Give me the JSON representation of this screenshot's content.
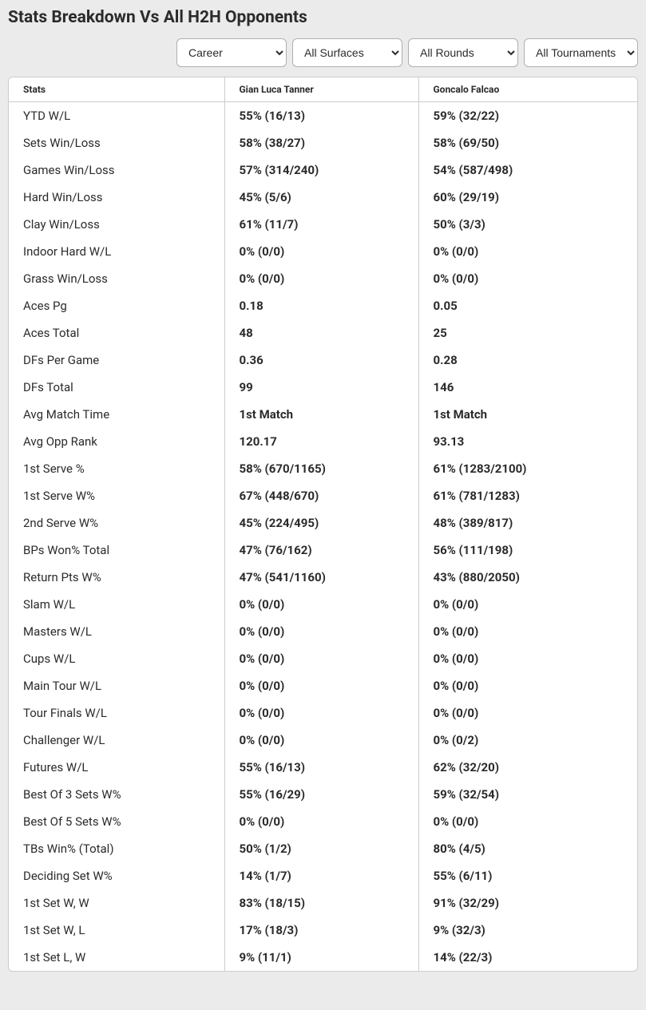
{
  "title": "Stats Breakdown Vs All H2H Opponents",
  "filters": {
    "period": {
      "selected": "Career",
      "options": [
        "Career"
      ]
    },
    "surface": {
      "selected": "All Surfaces",
      "options": [
        "All Surfaces"
      ]
    },
    "round": {
      "selected": "All Rounds",
      "options": [
        "All Rounds"
      ]
    },
    "tournament": {
      "selected": "All Tournaments",
      "options": [
        "All Tournaments"
      ]
    }
  },
  "table": {
    "headers": {
      "stats": "Stats",
      "player1": "Gian Luca Tanner",
      "player2": "Goncalo Falcao"
    },
    "rows": [
      {
        "label": "YTD W/L",
        "p1": "55% (16/13)",
        "p2": "59% (32/22)"
      },
      {
        "label": "Sets Win/Loss",
        "p1": "58% (38/27)",
        "p2": "58% (69/50)"
      },
      {
        "label": "Games Win/Loss",
        "p1": "57% (314/240)",
        "p2": "54% (587/498)"
      },
      {
        "label": "Hard Win/Loss",
        "p1": "45% (5/6)",
        "p2": "60% (29/19)"
      },
      {
        "label": "Clay Win/Loss",
        "p1": "61% (11/7)",
        "p2": "50% (3/3)"
      },
      {
        "label": "Indoor Hard W/L",
        "p1": "0% (0/0)",
        "p2": "0% (0/0)"
      },
      {
        "label": "Grass Win/Loss",
        "p1": "0% (0/0)",
        "p2": "0% (0/0)"
      },
      {
        "label": "Aces Pg",
        "p1": "0.18",
        "p2": "0.05"
      },
      {
        "label": "Aces Total",
        "p1": "48",
        "p2": "25"
      },
      {
        "label": "DFs Per Game",
        "p1": "0.36",
        "p2": "0.28"
      },
      {
        "label": "DFs Total",
        "p1": "99",
        "p2": "146"
      },
      {
        "label": "Avg Match Time",
        "p1": "1st Match",
        "p2": "1st Match"
      },
      {
        "label": "Avg Opp Rank",
        "p1": "120.17",
        "p2": "93.13"
      },
      {
        "label": "1st Serve %",
        "p1": "58% (670/1165)",
        "p2": "61% (1283/2100)"
      },
      {
        "label": "1st Serve W%",
        "p1": "67% (448/670)",
        "p2": "61% (781/1283)"
      },
      {
        "label": "2nd Serve W%",
        "p1": "45% (224/495)",
        "p2": "48% (389/817)"
      },
      {
        "label": "BPs Won% Total",
        "p1": "47% (76/162)",
        "p2": "56% (111/198)"
      },
      {
        "label": "Return Pts W%",
        "p1": "47% (541/1160)",
        "p2": "43% (880/2050)"
      },
      {
        "label": "Slam W/L",
        "p1": "0% (0/0)",
        "p2": "0% (0/0)"
      },
      {
        "label": "Masters W/L",
        "p1": "0% (0/0)",
        "p2": "0% (0/0)"
      },
      {
        "label": "Cups W/L",
        "p1": "0% (0/0)",
        "p2": "0% (0/0)"
      },
      {
        "label": "Main Tour W/L",
        "p1": "0% (0/0)",
        "p2": "0% (0/0)"
      },
      {
        "label": "Tour Finals W/L",
        "p1": "0% (0/0)",
        "p2": "0% (0/0)"
      },
      {
        "label": "Challenger W/L",
        "p1": "0% (0/0)",
        "p2": "0% (0/2)"
      },
      {
        "label": "Futures W/L",
        "p1": "55% (16/13)",
        "p2": "62% (32/20)"
      },
      {
        "label": "Best Of 3 Sets W%",
        "p1": "55% (16/29)",
        "p2": "59% (32/54)"
      },
      {
        "label": "Best Of 5 Sets W%",
        "p1": "0% (0/0)",
        "p2": "0% (0/0)"
      },
      {
        "label": "TBs Win% (Total)",
        "p1": "50% (1/2)",
        "p2": "80% (4/5)"
      },
      {
        "label": "Deciding Set W%",
        "p1": "14% (1/7)",
        "p2": "55% (6/11)"
      },
      {
        "label": "1st Set W, W",
        "p1": "83% (18/15)",
        "p2": "91% (32/29)"
      },
      {
        "label": "1st Set W, L",
        "p1": "17% (18/3)",
        "p2": "9% (32/3)"
      },
      {
        "label": "1st Set L, W",
        "p1": "9% (11/1)",
        "p2": "14% (22/3)"
      }
    ]
  }
}
